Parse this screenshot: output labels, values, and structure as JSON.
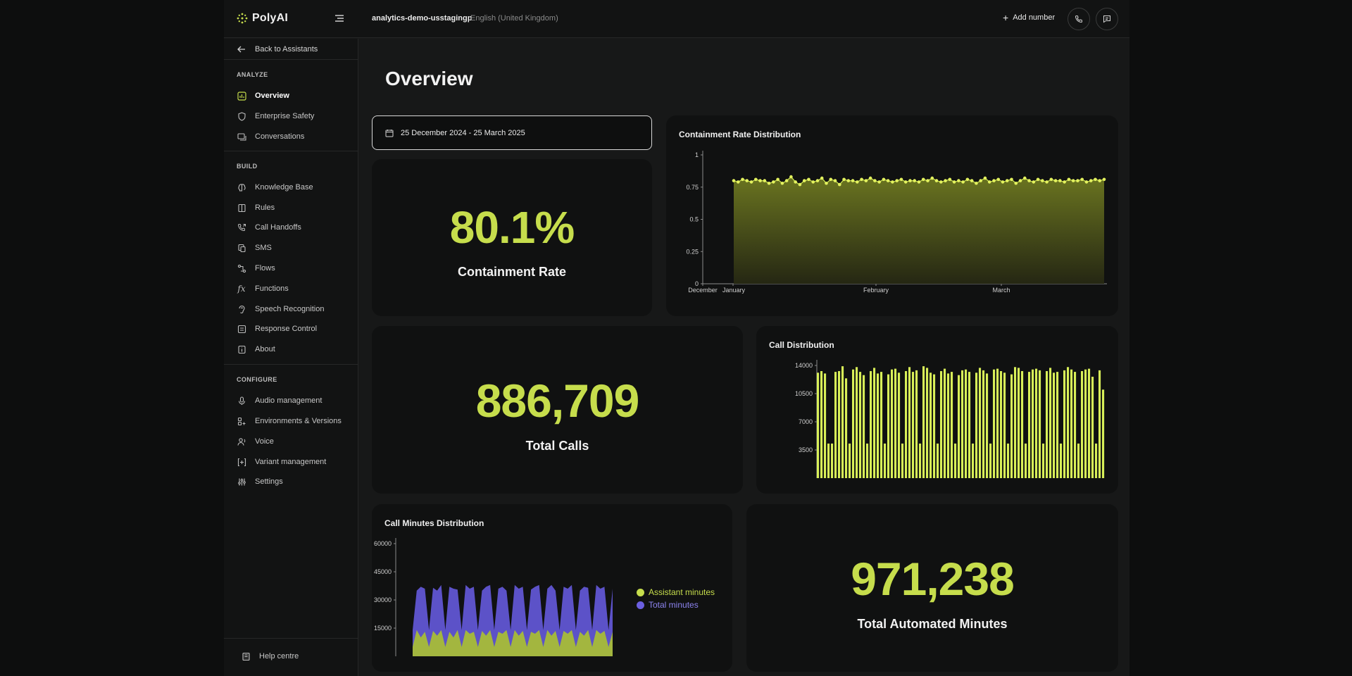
{
  "app": {
    "brand": "PolyAI",
    "project": "analytics-demo-usstagingp",
    "language": "English (United Kingdom)",
    "add_number": "Add number"
  },
  "sidebar": {
    "back": "Back to Assistants",
    "sections": [
      {
        "title": "ANALYZE",
        "items": [
          {
            "label": "Overview",
            "icon": "chart-icon",
            "active": true
          },
          {
            "label": "Enterprise Safety",
            "icon": "shield-icon"
          },
          {
            "label": "Conversations",
            "icon": "chat-icon"
          }
        ]
      },
      {
        "title": "BUILD",
        "items": [
          {
            "label": "Knowledge Base",
            "icon": "brain-icon"
          },
          {
            "label": "Rules",
            "icon": "book-icon"
          },
          {
            "label": "Call Handoffs",
            "icon": "phone-forward-icon"
          },
          {
            "label": "SMS",
            "icon": "sms-icon"
          },
          {
            "label": "Flows",
            "icon": "flow-icon"
          },
          {
            "label": "Functions",
            "icon": "function-icon"
          },
          {
            "label": "Speech Recognition",
            "icon": "ear-icon"
          },
          {
            "label": "Response Control",
            "icon": "sliders-icon"
          },
          {
            "label": "About",
            "icon": "info-icon"
          }
        ]
      },
      {
        "title": "CONFIGURE",
        "items": [
          {
            "label": "Audio management",
            "icon": "mic-icon"
          },
          {
            "label": "Environments & Versions",
            "icon": "layers-icon"
          },
          {
            "label": "Voice",
            "icon": "voice-icon"
          },
          {
            "label": "Variant management",
            "icon": "variant-icon"
          },
          {
            "label": "Settings",
            "icon": "settings-icon"
          }
        ]
      }
    ],
    "help": "Help centre"
  },
  "main": {
    "title": "Overview",
    "date_range": "25 December 2024 - 25 March 2025",
    "containment": {
      "value": "80.1%",
      "label": "Containment Rate"
    },
    "total_calls": {
      "value": "886,709",
      "label": "Total Calls"
    },
    "total_minutes": {
      "value": "971,238",
      "label": "Total Automated Minutes"
    }
  },
  "colors": {
    "accent": "#c6dd4c",
    "purple": "#6b5fe0",
    "card": "#101111",
    "bg": "#171818"
  },
  "chart_data": [
    {
      "type": "area",
      "title": "Containment Rate Distribution",
      "ylim": [
        0,
        1
      ],
      "yticks": [
        "1",
        "0.75",
        "0.5",
        "0.25",
        "0"
      ],
      "xticks": [
        "December",
        "January",
        "February",
        "March"
      ],
      "series": [
        {
          "values": [
            0.8,
            0.79,
            0.81,
            0.8,
            0.79,
            0.81,
            0.8,
            0.8,
            0.78,
            0.79,
            0.81,
            0.78,
            0.8,
            0.83,
            0.79,
            0.77,
            0.8,
            0.81,
            0.79,
            0.8,
            0.82,
            0.78,
            0.81,
            0.8,
            0.77,
            0.81,
            0.8,
            0.8,
            0.79,
            0.81,
            0.8,
            0.82,
            0.8,
            0.79,
            0.81,
            0.8,
            0.79,
            0.8,
            0.81,
            0.79,
            0.8,
            0.8,
            0.79,
            0.81,
            0.8,
            0.82,
            0.8,
            0.79,
            0.8,
            0.81,
            0.79,
            0.8,
            0.79,
            0.81,
            0.8,
            0.78,
            0.8,
            0.82,
            0.79,
            0.8,
            0.81,
            0.79,
            0.8,
            0.81,
            0.78,
            0.8,
            0.82,
            0.8,
            0.79,
            0.81,
            0.8,
            0.79,
            0.81,
            0.8,
            0.8,
            0.79,
            0.81,
            0.8,
            0.8,
            0.81,
            0.79,
            0.8,
            0.81,
            0.8,
            0.81
          ]
        }
      ]
    },
    {
      "type": "bar",
      "title": "Call Distribution",
      "ylim": [
        0,
        14000
      ],
      "yticks": [
        "14000",
        "10500",
        "7000",
        "3500"
      ],
      "series": [
        {
          "values": [
            13100,
            13300,
            13000,
            4300,
            4300,
            13200,
            13300,
            13900,
            12400,
            4300,
            13500,
            13800,
            13200,
            12800,
            4300,
            13300,
            13700,
            13000,
            13200,
            4300,
            12900,
            13500,
            13600,
            13100,
            4300,
            13300,
            13800,
            13200,
            13400,
            4300,
            13900,
            13700,
            13100,
            12900,
            4300,
            13300,
            13600,
            13000,
            13200,
            4300,
            12800,
            13400,
            13500,
            13200,
            4300,
            13100,
            13700,
            13400,
            13000,
            4300,
            13500,
            13600,
            13300,
            13100,
            4300,
            12900,
            13800,
            13700,
            13300,
            4300,
            13200,
            13500,
            13600,
            13400,
            4300,
            13300,
            13700,
            13100,
            13200,
            4300,
            13400,
            13800,
            13500,
            13200,
            4300,
            13300,
            13500,
            13600,
            12600,
            4300,
            13400,
            11000
          ]
        }
      ]
    },
    {
      "type": "area",
      "title": "Call Minutes Distribution",
      "ylim": [
        0,
        60000
      ],
      "yticks": [
        "60000",
        "45000",
        "30000",
        "15000"
      ],
      "series": [
        {
          "name": "Assistant minutes",
          "color": "#c6dd4c",
          "values": [
            5000,
            14000,
            10000,
            13000,
            5000,
            13500,
            11000,
            14000,
            5000,
            13000,
            10000,
            14000,
            5000,
            14000,
            12000,
            13000,
            5000,
            13500,
            11000,
            14000,
            5000,
            13000,
            12000,
            14000,
            5000,
            14000,
            11000,
            13500,
            5000,
            13000,
            12000,
            14000,
            5000,
            14000,
            11000,
            13500,
            5000,
            13500,
            12000,
            14000,
            5000,
            13000,
            11000,
            14000,
            5000,
            14000,
            12000,
            13500,
            5000,
            13000
          ]
        },
        {
          "name": "Total minutes",
          "color": "#6b5fe0",
          "values": [
            14000,
            35000,
            37000,
            36000,
            14000,
            36500,
            35000,
            38000,
            14000,
            37000,
            36000,
            35500,
            14000,
            38000,
            36000,
            37000,
            14000,
            35000,
            37000,
            38000,
            14000,
            36000,
            37000,
            35000,
            14000,
            38000,
            36000,
            37000,
            14000,
            35500,
            37000,
            38000,
            14000,
            36000,
            38000,
            35000,
            14000,
            37000,
            36000,
            38000,
            14000,
            35000,
            37000,
            36500,
            14000,
            38000,
            36000,
            37000,
            14000,
            36000
          ]
        }
      ]
    }
  ]
}
